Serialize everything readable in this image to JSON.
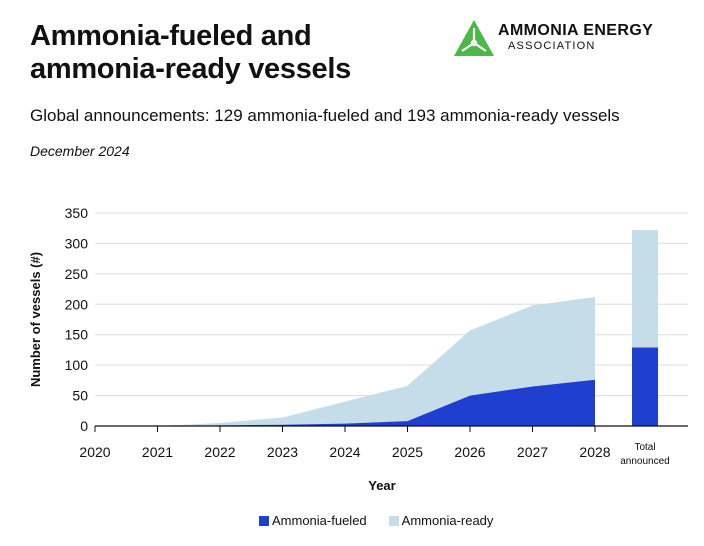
{
  "header": {
    "title_line1": "Ammonia-fueled and",
    "title_line2": "ammonia-ready vessels",
    "subtitle": "Global announcements: 129 ammonia-fueled and 193 ammonia-ready vessels",
    "date": "December 2024"
  },
  "logo": {
    "name": "AMMONIA ENERGY",
    "sub": "ASSOCIATION",
    "icon": "triangle-network-icon",
    "color": "#4cb848"
  },
  "chart_data": {
    "type": "area",
    "x": [
      2020,
      2021,
      2022,
      2023,
      2024,
      2025,
      2026,
      2027,
      2028
    ],
    "xlabel": "Year",
    "ylabel": "Number of vessels (#)",
    "ylim": [
      0,
      350
    ],
    "yticks": [
      0,
      50,
      100,
      150,
      200,
      250,
      300,
      350
    ],
    "grid": true,
    "stacked": true,
    "series": [
      {
        "name": "Ammonia-fueled",
        "color": "#1f3fd0",
        "values": [
          0,
          0,
          1,
          2,
          4,
          8,
          50,
          65,
          76
        ]
      },
      {
        "name": "Ammonia-ready",
        "color": "#c5dde8",
        "values": [
          0,
          0,
          4,
          12,
          36,
          58,
          107,
          133,
          136
        ]
      }
    ],
    "total_bar": {
      "label_line1": "Total",
      "label_line2": "announced",
      "values": [
        129,
        193
      ]
    },
    "legend_position": "bottom"
  }
}
